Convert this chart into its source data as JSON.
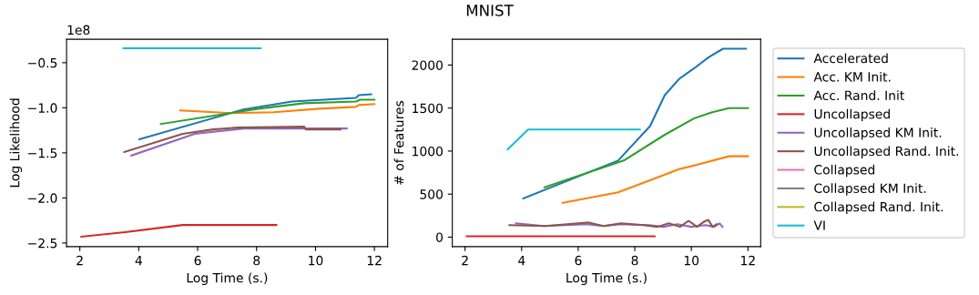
{
  "chart_data": [
    {
      "type": "line",
      "xlabel": "Log Time (s.)",
      "ylabel": "Log Likelihood",
      "annotations": [
        "1e8"
      ],
      "xlim": [
        1.55,
        12.45
      ],
      "xticks": [
        2,
        4,
        6,
        8,
        10,
        12
      ],
      "ylim": [
        -2.54,
        -0.24
      ],
      "yticks": [
        {
          "value": -2.5,
          "label": "−2.5"
        },
        {
          "value": -2.0,
          "label": "−2.0"
        },
        {
          "value": -1.5,
          "label": "−1.5"
        },
        {
          "value": -1.0,
          "label": "−1.0"
        },
        {
          "value": -0.5,
          "label": "−0.5"
        }
      ],
      "grid": false,
      "series": [
        {
          "color": "#1f77b4",
          "x": [
            4.02,
            7.55,
            9.2,
            11.37,
            11.47,
            11.89
          ],
          "values": [
            -1.35,
            -1.02,
            -0.93,
            -0.89,
            -0.86,
            -0.85
          ]
        },
        {
          "color": "#ff7f0e",
          "x": [
            5.41,
            7.14,
            8.58,
            10.13,
            11.37,
            11.47,
            12.0
          ],
          "values": [
            -1.03,
            -1.06,
            -1.05,
            -1.01,
            -0.99,
            -0.97,
            -0.96
          ]
        },
        {
          "color": "#2ca02c",
          "x": [
            4.75,
            8.07,
            9.62,
            11.37,
            11.52,
            12.0
          ],
          "values": [
            -1.18,
            -1.01,
            -0.95,
            -0.93,
            -0.91,
            -0.91
          ]
        },
        {
          "color": "#d62728",
          "x": [
            2.05,
            3.53,
            5.49,
            8.67
          ],
          "values": [
            -2.43,
            -2.38,
            -2.3,
            -2.3
          ]
        },
        {
          "color": "#9467bd",
          "x": [
            3.75,
            5.9,
            7.55,
            11.06
          ],
          "values": [
            -1.53,
            -1.29,
            -1.23,
            -1.23
          ]
        },
        {
          "color": "#8c564b",
          "x": [
            3.51,
            5.49,
            6.52,
            7.35,
            9.62,
            9.67,
            10.85
          ],
          "values": [
            -1.49,
            -1.29,
            -1.24,
            -1.22,
            -1.21,
            -1.24,
            -1.24
          ]
        },
        {
          "color": "#17becf",
          "x": [
            3.48,
            8.14
          ],
          "values": [
            -0.34,
            -0.34
          ]
        }
      ]
    },
    {
      "type": "line",
      "title": "MNIST",
      "xlabel": "Log Time (s.)",
      "ylabel": "# of Features",
      "xlim": [
        1.55,
        12.45
      ],
      "xticks": [
        2,
        4,
        6,
        8,
        10,
        12
      ],
      "ylim": [
        -110,
        2300
      ],
      "yticks": [
        0,
        500,
        1000,
        1500,
        2000
      ],
      "grid": false,
      "legend": "right",
      "series": [
        {
          "name": "Accelerated",
          "color": "#1f77b4",
          "x": [
            4.06,
            7.41,
            8.54,
            9.06,
            9.57,
            10.09,
            10.61,
            11.12,
            11.43,
            11.93
          ],
          "values": [
            450,
            890,
            1290,
            1650,
            1840,
            1960,
            2090,
            2190,
            2190,
            2190
          ]
        },
        {
          "name": "Acc. KM Init.",
          "color": "#ff7f0e",
          "x": [
            5.45,
            7.41,
            8.54,
            9.57,
            10.19,
            11.33,
            12.0
          ],
          "values": [
            400,
            520,
            660,
            790,
            840,
            940,
            940
          ]
        },
        {
          "name": "Acc. Rand. Init",
          "color": "#2ca02c",
          "x": [
            4.81,
            7.61,
            9.06,
            10.09,
            10.71,
            11.33,
            12.0
          ],
          "values": [
            580,
            890,
            1190,
            1380,
            1450,
            1500,
            1500
          ]
        },
        {
          "name": "Uncollapsed",
          "color": "#d62728",
          "x": [
            2.06,
            8.7
          ],
          "values": [
            10,
            10
          ]
        },
        {
          "name": "Uncollapsed KM Init.",
          "color": "#9467bd",
          "x": [
            3.8,
            4.8,
            6.3,
            6.9,
            7.5,
            8.5,
            9.0,
            9.5,
            10.0,
            10.5,
            10.8,
            11.0,
            11.1
          ],
          "values": [
            160,
            130,
            150,
            130,
            150,
            140,
            120,
            150,
            120,
            140,
            120,
            160,
            120
          ]
        },
        {
          "name": "Uncollapsed Rand. Init.",
          "color": "#8c564b",
          "x": [
            3.57,
            4.83,
            6.38,
            6.89,
            7.51,
            8.3,
            8.8,
            9.2,
            9.6,
            9.9,
            10.2,
            10.45,
            10.6,
            10.75,
            10.9
          ],
          "values": [
            140,
            130,
            170,
            130,
            160,
            140,
            120,
            160,
            120,
            190,
            120,
            180,
            200,
            120,
            150
          ]
        },
        {
          "name": "Collapsed",
          "color": "#e377c2"
        },
        {
          "name": "Collapsed KM Init.",
          "color": "#7f7f7f"
        },
        {
          "name": "Collapsed Rand. Init.",
          "color": "#bcbd22"
        },
        {
          "name": "VI",
          "color": "#17becf",
          "x": [
            3.51,
            4.23,
            8.18
          ],
          "values": [
            1020,
            1250,
            1250
          ]
        }
      ]
    }
  ]
}
